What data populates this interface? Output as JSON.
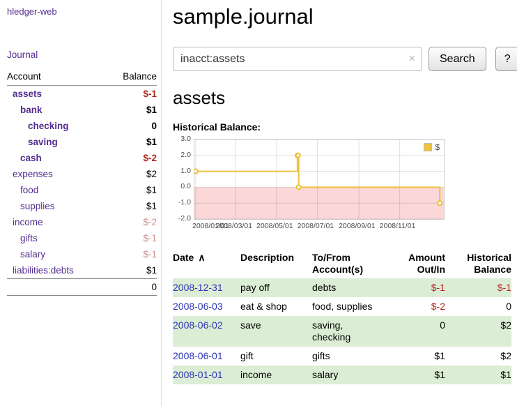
{
  "sidebar": {
    "app_title": "hledger-web",
    "journal_link": "Journal",
    "accounts_table": {
      "account_header": "Account",
      "balance_header": "Balance",
      "rows": [
        {
          "name": "assets",
          "balance": "$-1",
          "indent": 0,
          "bold": true,
          "name_style": "maroon",
          "balance_style": "neg"
        },
        {
          "name": "bank",
          "balance": "$1",
          "indent": 1,
          "bold": true,
          "name_style": "",
          "balance_style": ""
        },
        {
          "name": "checking",
          "balance": "0",
          "indent": 2,
          "bold": true,
          "name_style": "",
          "balance_style": ""
        },
        {
          "name": "saving",
          "balance": "$1",
          "indent": 2,
          "bold": true,
          "name_style": "",
          "balance_style": ""
        },
        {
          "name": "cash",
          "balance": "$-2",
          "indent": 1,
          "bold": true,
          "name_style": "maroon",
          "balance_style": "neg"
        },
        {
          "name": "expenses",
          "balance": "$2",
          "indent": 0,
          "bold": false,
          "name_style": "",
          "balance_style": ""
        },
        {
          "name": "food",
          "balance": "$1",
          "indent": 1,
          "bold": false,
          "name_style": "",
          "balance_style": ""
        },
        {
          "name": "supplies",
          "balance": "$1",
          "indent": 1,
          "bold": false,
          "name_style": "",
          "balance_style": ""
        },
        {
          "name": "income",
          "balance": "$-2",
          "indent": 0,
          "bold": false,
          "name_style": "",
          "balance_style": "negdim"
        },
        {
          "name": "gifts",
          "balance": "$-1",
          "indent": 1,
          "bold": false,
          "name_style": "",
          "balance_style": "negdim"
        },
        {
          "name": "salary",
          "balance": "$-1",
          "indent": 1,
          "bold": false,
          "name_style": "",
          "balance_style": "negdim"
        },
        {
          "name": "liabilities:debts",
          "balance": "$1",
          "indent": 0,
          "bold": false,
          "name_style": "",
          "balance_style": ""
        }
      ],
      "total": "0"
    }
  },
  "main": {
    "title": "sample.journal",
    "search": {
      "value": "inacct:assets",
      "clear_icon": "×",
      "button_label": "Search",
      "help_label": "?"
    },
    "account_heading": "assets",
    "chart_title": "Historical Balance:"
  },
  "chart_data": {
    "type": "line",
    "step": true,
    "title": "Historical Balance",
    "legend": [
      {
        "label": "$",
        "color": "#edc240"
      }
    ],
    "legend_position": "top-right",
    "grid": true,
    "x_range": [
      "2007-12-30",
      "2009-01-06"
    ],
    "ylim": [
      -2,
      3
    ],
    "yticks": [
      "3.0",
      "2.0",
      "1.0",
      "0.0",
      "-1.0",
      "-2.0"
    ],
    "ytick_values": [
      3,
      2,
      1,
      0,
      -1,
      -2
    ],
    "xticks": [
      {
        "label": "2008/01/01",
        "date": "2008-01-01"
      },
      {
        "label": "2008/03/01",
        "date": "2008-03-01"
      },
      {
        "label": "2008/05/01",
        "date": "2008-05-01"
      },
      {
        "label": "2008/07/01",
        "date": "2008-07-01"
      },
      {
        "label": "2008/09/01",
        "date": "2008-09-01"
      },
      {
        "label": "2008/11/01",
        "date": "2008-11-01"
      }
    ],
    "series": [
      {
        "name": "$",
        "color": "#edc240",
        "points": [
          {
            "date": "2008-01-01",
            "value": 1
          },
          {
            "date": "2008-06-01",
            "value": 2
          },
          {
            "date": "2008-06-02",
            "value": 2
          },
          {
            "date": "2008-06-03",
            "value": 0
          },
          {
            "date": "2008-12-31",
            "value": -1
          }
        ]
      }
    ],
    "negative_region_color": "#fbd7d7"
  },
  "register": {
    "headers": {
      "date": "Date",
      "sort_indicator": "∧",
      "description": "Description",
      "accounts": "To/From Account(s)",
      "amount": "Amount Out/In",
      "balance": "Historical Balance"
    },
    "rows": [
      {
        "date": "2008-12-31",
        "description": "pay off",
        "accounts": "debts",
        "amount": "$-1",
        "amount_negative": true,
        "balance": "$-1",
        "balance_negative": true,
        "shaded": true
      },
      {
        "date": "2008-06-03",
        "description": "eat & shop",
        "accounts": "food, supplies",
        "amount": "$-2",
        "amount_negative": true,
        "balance": "0",
        "balance_negative": false,
        "shaded": false
      },
      {
        "date": "2008-06-02",
        "description": "save",
        "accounts": "saving, checking",
        "amount": "0",
        "amount_negative": false,
        "balance": "$2",
        "balance_negative": false,
        "shaded": true
      },
      {
        "date": "2008-06-01",
        "description": "gift",
        "accounts": "gifts",
        "amount": "$1",
        "amount_negative": false,
        "balance": "$2",
        "balance_negative": false,
        "shaded": false
      },
      {
        "date": "2008-01-01",
        "description": "income",
        "accounts": "salary",
        "amount": "$1",
        "amount_negative": false,
        "balance": "$1",
        "balance_negative": false,
        "shaded": true
      }
    ]
  },
  "colors": {
    "link_purple": "#552d90",
    "account_maroon": "#8b1f1b",
    "negative_red": "#b0281e",
    "negative_dim": "#cf8d85",
    "date_link_blue": "#2c35b5",
    "row_green": "#dcedd5",
    "series_gold": "#edc240",
    "negative_region_pink": "#fbd7d7"
  }
}
